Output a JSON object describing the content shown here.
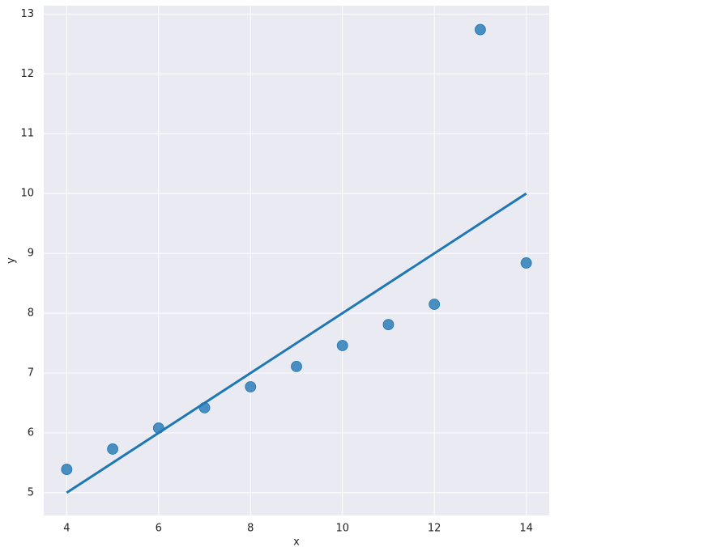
{
  "chart_data": {
    "type": "scatter",
    "x_label": "x",
    "y_label": "y",
    "series": [
      {
        "color": "#1f77b4",
        "x": [
          10,
          8,
          13,
          9,
          11,
          14,
          6,
          4,
          12,
          7,
          5
        ],
        "values": [
          7.46,
          6.77,
          12.74,
          7.11,
          7.81,
          8.84,
          6.08,
          5.39,
          8.15,
          6.42,
          5.73
        ]
      }
    ],
    "fit": {
      "color": "#1f77b4",
      "x": [
        4,
        14
      ],
      "values": [
        5,
        10
      ]
    },
    "xlim": [
      3.5,
      14.5
    ],
    "ylim": [
      4.62,
      13.14
    ],
    "xticks": [
      4,
      6,
      8,
      10,
      12,
      14
    ],
    "yticks": [
      5,
      6,
      7,
      8,
      9,
      10,
      11,
      12,
      13
    ],
    "grid": true
  }
}
